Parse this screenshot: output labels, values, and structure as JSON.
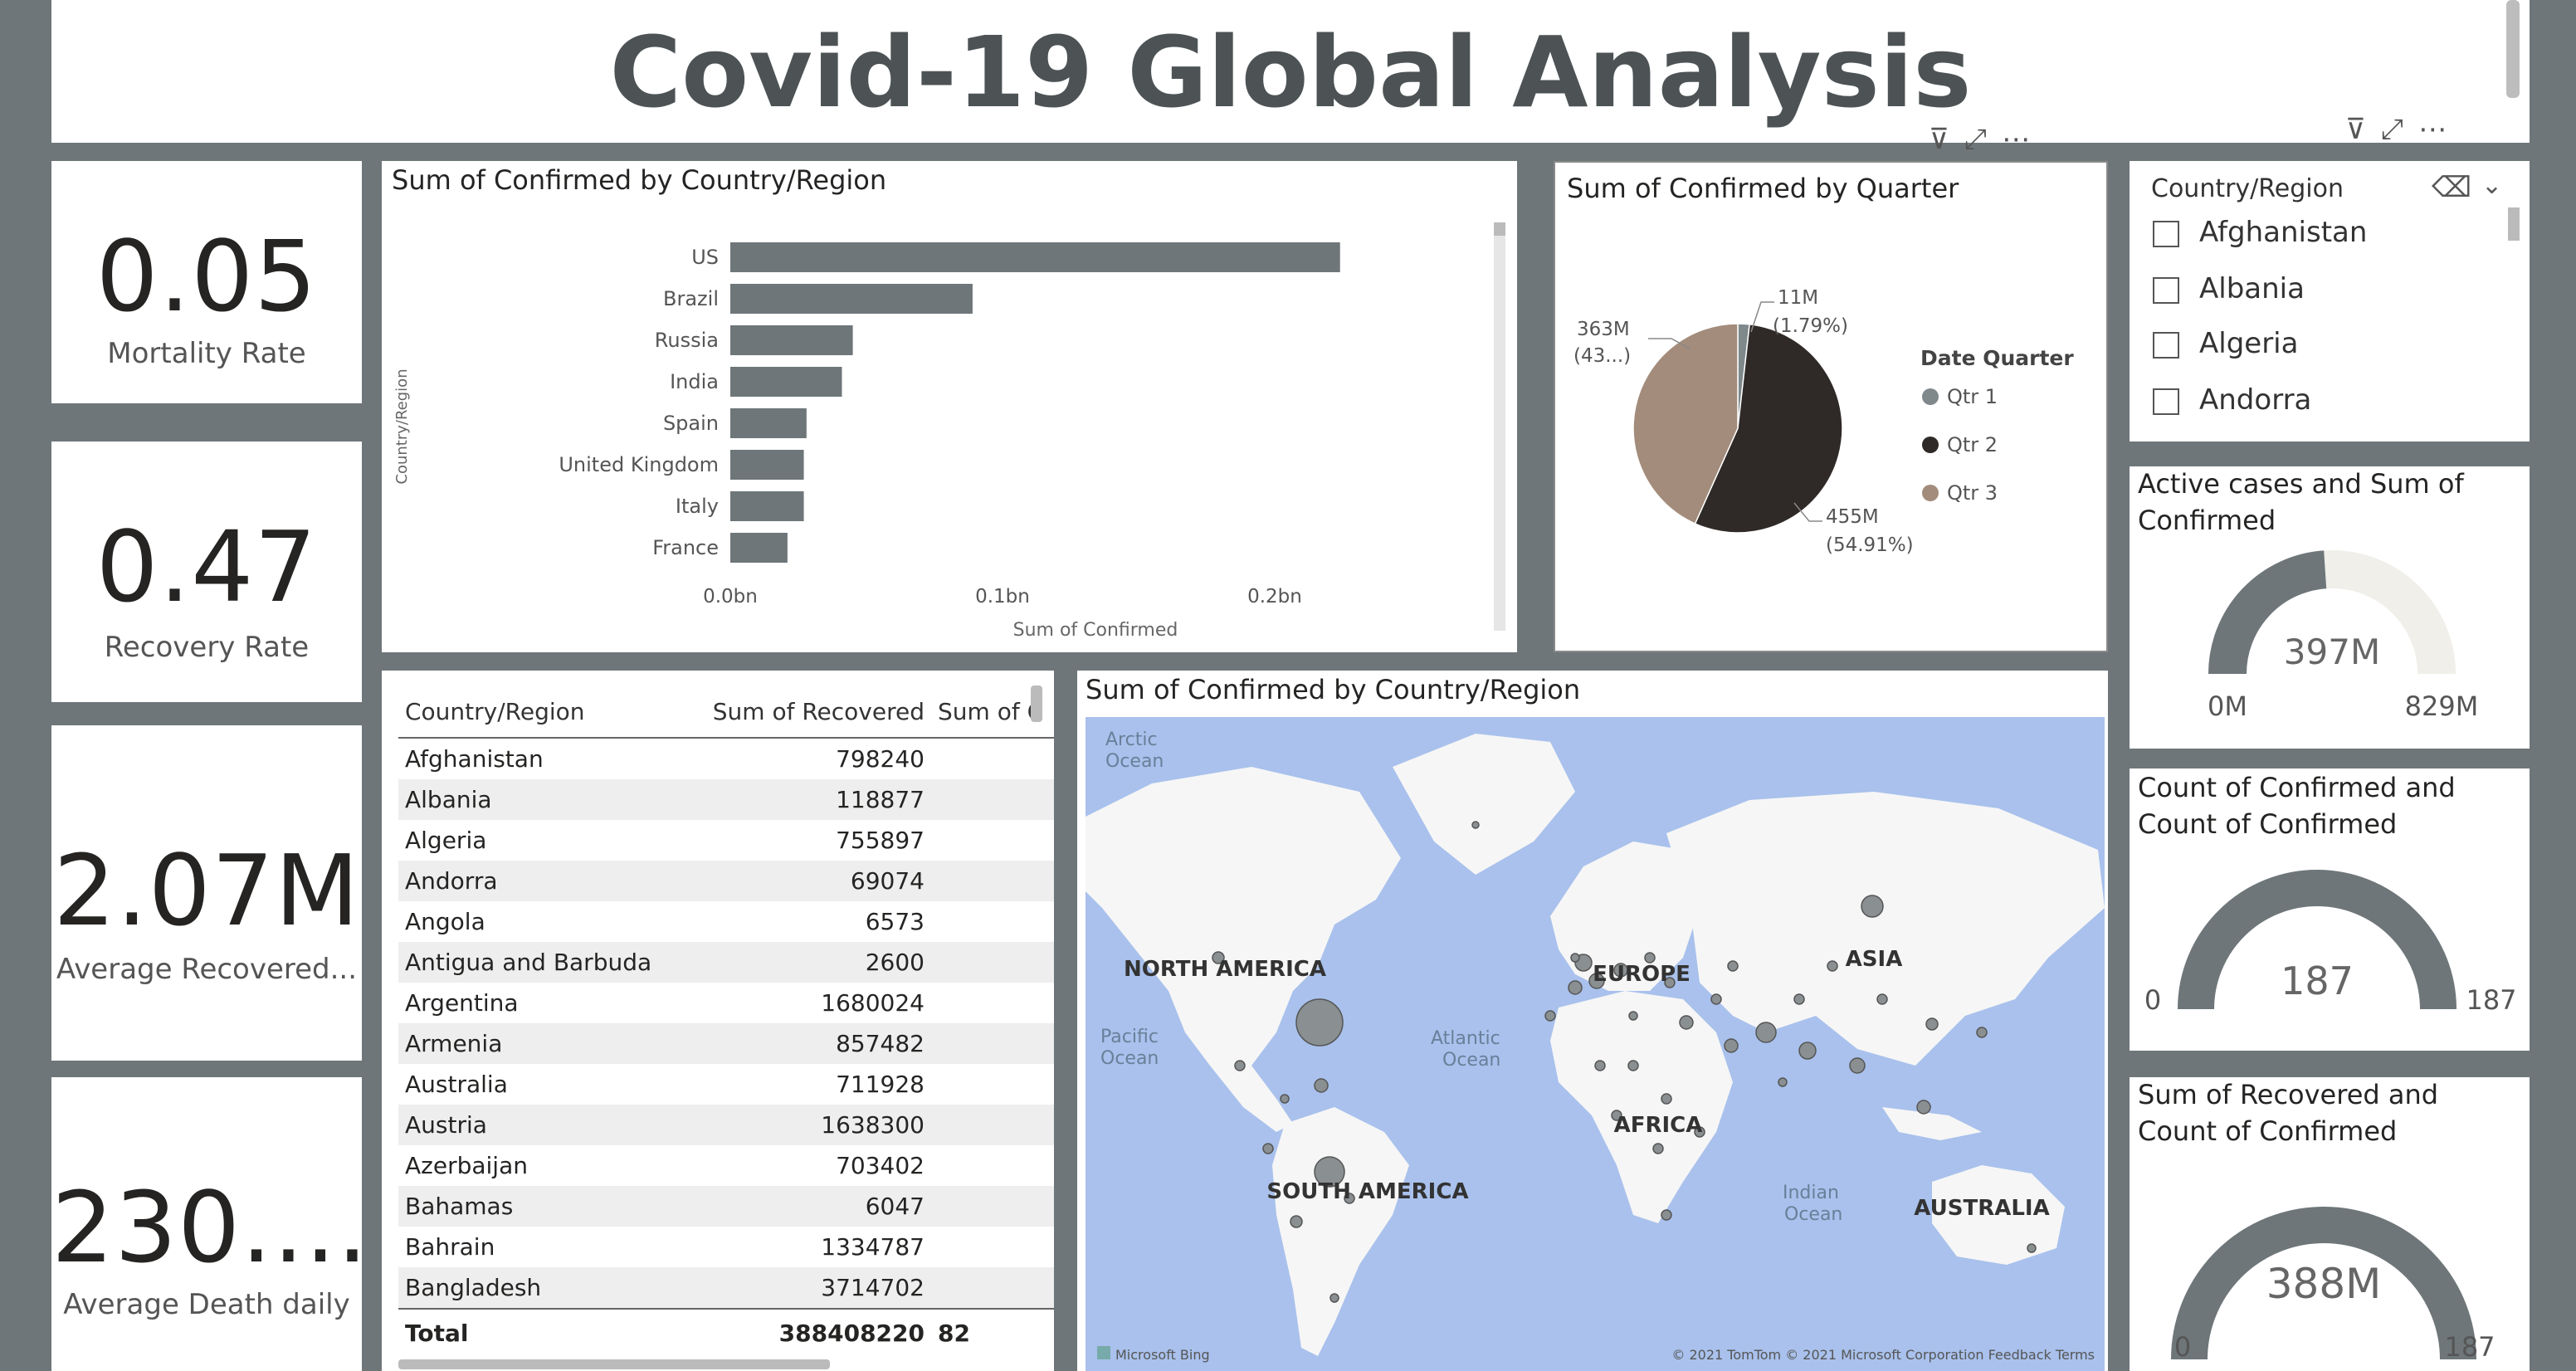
{
  "title": "Covid-19 Global Analysis",
  "kpis": [
    {
      "value": "0.05",
      "label": "Mortality Rate"
    },
    {
      "value": "0.47",
      "label": "Recovery Rate"
    },
    {
      "value": "2.07M",
      "label": "Average Recovered..."
    },
    {
      "value": "230....",
      "label": "Average Death daily"
    }
  ],
  "bar_chart": {
    "chart_data": {
      "type": "bar",
      "title": "Sum of Confirmed by Country/Region",
      "xlabel": "Sum of Confirmed",
      "ylabel": "Country/Region",
      "categories": [
        "US",
        "Brazil",
        "Russia",
        "India",
        "Spain",
        "United Kingdom",
        "Italy",
        "France"
      ],
      "values": [
        0.224,
        0.089,
        0.045,
        0.041,
        0.028,
        0.027,
        0.027,
        0.021
      ],
      "xlim": [
        0,
        0.25
      ],
      "x_ticks": [
        "0.0bn",
        "0.1bn",
        "0.2bn"
      ]
    }
  },
  "pie_chart": {
    "chart_data": {
      "type": "pie",
      "title": "Sum of Confirmed by Quarter",
      "legend_title": "Date Quarter",
      "legend_position": "right",
      "categories": [
        "Qtr 1",
        "Qtr 2",
        "Qtr 3"
      ],
      "values": [
        1.79,
        54.91,
        43.3
      ],
      "colors": [
        "#7f898c",
        "#2f2a28",
        "#a38c7b"
      ],
      "data_labels": {
        "qtr1": [
          "11M",
          "(1.79%)"
        ],
        "qtr2": [
          "455M",
          "(54.91%)"
        ],
        "qtr3": [
          "363M",
          "(43...)"
        ]
      }
    }
  },
  "slicer": {
    "title": "Country/Region",
    "items": [
      "Afghanistan",
      "Albania",
      "Algeria",
      "Andorra"
    ]
  },
  "gauges": [
    {
      "title_line1": "Active cases and Sum of",
      "title_line2": "Confirmed",
      "value": "397M",
      "min": "0M",
      "max": "829M",
      "fraction": 0.479
    },
    {
      "title_line1": "Count of Confirmed and",
      "title_line2": "Count of Confirmed",
      "value": "187",
      "min": "0",
      "max": "187",
      "fraction": 1.0
    },
    {
      "title_line1": "Sum of Recovered and",
      "title_line2": "Count of Confirmed",
      "value": "388M",
      "min": "0",
      "max": "187",
      "fraction": 1.0
    }
  ],
  "table": {
    "columns": [
      "Country/Region",
      "Sum of Recovered",
      "Sum of C"
    ],
    "rows": [
      [
        "Afghanistan",
        "798240"
      ],
      [
        "Albania",
        "118877"
      ],
      [
        "Algeria",
        "755897"
      ],
      [
        "Andorra",
        "69074"
      ],
      [
        "Angola",
        "6573"
      ],
      [
        "Antigua and Barbuda",
        "2600"
      ],
      [
        "Argentina",
        "1680024"
      ],
      [
        "Armenia",
        "857482"
      ],
      [
        "Australia",
        "711928"
      ],
      [
        "Austria",
        "1638300"
      ],
      [
        "Azerbaijan",
        "703402"
      ],
      [
        "Bahamas",
        "6047"
      ],
      [
        "Bahrain",
        "1334787"
      ],
      [
        "Bangladesh",
        "3714702"
      ]
    ],
    "total_label": "Total",
    "total_recovered": "388408220",
    "total_confirmed_partial": "82"
  },
  "map": {
    "title": "Sum of Confirmed by Country/Region",
    "labels": {
      "arctic": [
        "Arctic",
        "Ocean"
      ],
      "north_america": "NORTH AMERICA",
      "europe": "EUROPE",
      "asia": "ASIA",
      "pacific": [
        "Pacific",
        "Ocean"
      ],
      "atlantic": [
        "Atlantic",
        "Ocean"
      ],
      "africa": "AFRICA",
      "south_america": "SOUTH AMERICA",
      "indian": [
        "Indian",
        "Ocean"
      ],
      "australia": "AUSTRALIA"
    },
    "logo_text": "Microsoft Bing",
    "attribution": "© 2021 TomTom © 2021 Microsoft Corporation Feedback Terms"
  }
}
